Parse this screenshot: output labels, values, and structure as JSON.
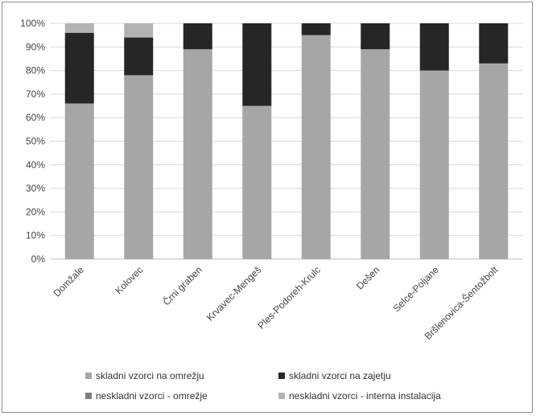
{
  "chart_data": {
    "type": "bar",
    "stacked": true,
    "categories": [
      "Domžale",
      "Kolovec",
      "Črni graben",
      "Krvavec-Mengeš",
      "Ples-Podoreh-Krulc",
      "Dešen",
      "Selce-Poljane",
      "Bršlenovica-Šentožbolt"
    ],
    "series": [
      {
        "name": "skladni vzorci na omrežju",
        "color": "#a6a6a6",
        "values": [
          66,
          78,
          89,
          65,
          95,
          89,
          80,
          83
        ]
      },
      {
        "name": "skladni vzorci na zajetju",
        "color": "#262626",
        "values": [
          30,
          16,
          11,
          35,
          5,
          11,
          20,
          17
        ]
      },
      {
        "name": "neskladni vzorci - omrežje",
        "color": "#7f7f7f",
        "values": [
          0,
          0,
          0,
          0,
          0,
          0,
          0,
          0
        ]
      },
      {
        "name": "neskladni vzorci - interna instalacija",
        "color": "#b3b3b3",
        "values": [
          4,
          6,
          0,
          0,
          0,
          0,
          0,
          0
        ]
      }
    ],
    "y_ticks": [
      "0%",
      "10%",
      "20%",
      "30%",
      "40%",
      "50%",
      "60%",
      "70%",
      "80%",
      "90%",
      "100%"
    ],
    "ylim": [
      0,
      100
    ],
    "grid": true,
    "legend_position": "bottom"
  }
}
